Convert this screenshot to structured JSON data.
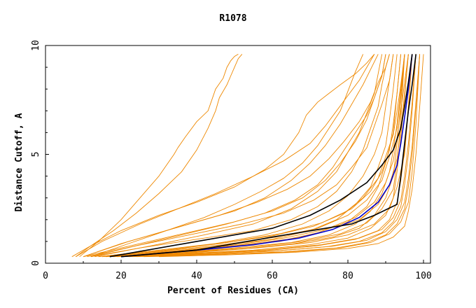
{
  "chart_data": {
    "type": "line",
    "title": "R1078",
    "xlabel": "Percent of Residues (CA)",
    "ylabel": "Distance Cutoff, A",
    "xlim": [
      0,
      100
    ],
    "ylim": [
      0,
      10
    ],
    "xticks": [
      "0",
      "20",
      "40",
      "60",
      "80",
      "100"
    ],
    "yticks": [
      "0",
      "5",
      "10"
    ],
    "grid": false,
    "legend": "none",
    "colors": {
      "models": "#ee8800",
      "highlight_blue": "#0000cc",
      "highlight_black": "#000000",
      "axis": "#000000"
    },
    "series": [
      {
        "color": "orange",
        "x": [
          9,
          14,
          20,
          25,
          30,
          32,
          34,
          35,
          37,
          40,
          43,
          44,
          45,
          47,
          48,
          49,
          50,
          51
        ],
        "y": [
          0.3,
          1.0,
          2.0,
          3.0,
          4.0,
          4.5,
          5.0,
          5.3,
          5.8,
          6.5,
          7.0,
          7.5,
          8.0,
          8.5,
          9.0,
          9.3,
          9.5,
          9.6
        ]
      },
      {
        "color": "orange",
        "x": [
          8,
          12,
          18,
          24,
          30,
          36,
          40,
          43,
          45,
          46,
          48,
          49,
          50,
          51,
          52
        ],
        "y": [
          0.3,
          0.8,
          1.5,
          2.3,
          3.2,
          4.2,
          5.2,
          6.2,
          7.0,
          7.6,
          8.2,
          8.6,
          9.0,
          9.4,
          9.6
        ]
      },
      {
        "color": "orange",
        "x": [
          7,
          12,
          20,
          30,
          40,
          50,
          58,
          63,
          65,
          67,
          68,
          69,
          70,
          72,
          75,
          78,
          82,
          85,
          86,
          87
        ],
        "y": [
          0.3,
          0.8,
          1.5,
          2.2,
          2.8,
          3.5,
          4.3,
          5.0,
          5.5,
          6.0,
          6.4,
          6.8,
          7.0,
          7.4,
          7.8,
          8.2,
          8.7,
          9.2,
          9.4,
          9.6
        ]
      },
      {
        "color": "orange",
        "x": [
          8,
          15,
          25,
          35,
          45,
          55,
          63,
          70,
          74,
          77,
          80,
          83,
          85,
          86,
          87
        ],
        "y": [
          0.3,
          1.0,
          1.8,
          2.5,
          3.2,
          4.0,
          4.7,
          5.5,
          6.3,
          7.0,
          7.7,
          8.4,
          9.0,
          9.3,
          9.6
        ]
      },
      {
        "color": "orange",
        "x": [
          10,
          20,
          30,
          40,
          50,
          58,
          65,
          70,
          74,
          78,
          81,
          84,
          86,
          88
        ],
        "y": [
          0.3,
          0.9,
          1.4,
          1.9,
          2.4,
          3.0,
          3.8,
          4.6,
          5.4,
          6.4,
          7.3,
          8.2,
          8.9,
          9.6
        ]
      },
      {
        "color": "orange",
        "x": [
          10,
          20,
          30,
          40,
          50,
          60,
          68,
          74,
          78,
          82,
          85,
          87,
          89,
          90
        ],
        "y": [
          0.3,
          0.7,
          1.1,
          1.5,
          1.9,
          2.4,
          3.0,
          3.8,
          4.6,
          5.6,
          6.6,
          7.6,
          8.6,
          9.6
        ]
      },
      {
        "color": "orange",
        "x": [
          12,
          25,
          40,
          55,
          65,
          72,
          77,
          81,
          84,
          86,
          88,
          89,
          90,
          91
        ],
        "y": [
          0.3,
          0.7,
          1.1,
          1.5,
          2.0,
          2.6,
          3.3,
          4.2,
          5.2,
          6.2,
          7.2,
          8.2,
          9.0,
          9.6
        ]
      },
      {
        "color": "orange",
        "x": [
          14,
          30,
          45,
          58,
          68,
          75,
          80,
          84,
          87,
          89,
          90,
          91,
          92
        ],
        "y": [
          0.3,
          0.6,
          0.9,
          1.3,
          1.8,
          2.4,
          3.1,
          4.0,
          5.0,
          6.0,
          7.2,
          8.4,
          9.6
        ]
      },
      {
        "color": "orange",
        "x": [
          15,
          30,
          45,
          60,
          70,
          77,
          82,
          86,
          88,
          90,
          91,
          92,
          93
        ],
        "y": [
          0.3,
          0.55,
          0.8,
          1.1,
          1.5,
          2.0,
          2.7,
          3.5,
          4.4,
          5.4,
          6.6,
          8.0,
          9.6
        ]
      },
      {
        "color": "orange",
        "x": [
          16,
          32,
          48,
          62,
          72,
          80,
          85,
          88,
          90,
          92,
          93,
          94
        ],
        "y": [
          0.3,
          0.5,
          0.75,
          1.0,
          1.4,
          1.9,
          2.6,
          3.5,
          4.6,
          6.0,
          7.8,
          9.6
        ]
      },
      {
        "color": "orange",
        "x": [
          17,
          35,
          50,
          65,
          75,
          82,
          86,
          89,
          91,
          92,
          93,
          94,
          95
        ],
        "y": [
          0.3,
          0.5,
          0.7,
          0.95,
          1.3,
          1.8,
          2.4,
          3.2,
          4.2,
          5.2,
          6.4,
          8.0,
          9.6
        ]
      },
      {
        "color": "orange",
        "x": [
          18,
          36,
          52,
          66,
          76,
          83,
          87,
          90,
          92,
          93,
          94,
          95
        ],
        "y": [
          0.3,
          0.45,
          0.65,
          0.9,
          1.2,
          1.6,
          2.2,
          3.0,
          4.0,
          5.5,
          7.4,
          9.6
        ]
      },
      {
        "color": "orange",
        "x": [
          19,
          38,
          55,
          70,
          80,
          86,
          90,
          92,
          93,
          94,
          95,
          96
        ],
        "y": [
          0.3,
          0.45,
          0.6,
          0.85,
          1.15,
          1.6,
          2.2,
          3.0,
          4.2,
          5.8,
          7.6,
          9.6
        ]
      },
      {
        "color": "orange",
        "x": [
          20,
          40,
          58,
          72,
          82,
          88,
          91,
          93,
          94,
          95,
          96,
          97
        ],
        "y": [
          0.3,
          0.42,
          0.58,
          0.8,
          1.1,
          1.5,
          2.0,
          2.8,
          3.8,
          5.2,
          7.2,
          9.6
        ]
      },
      {
        "color": "orange",
        "x": [
          22,
          42,
          60,
          74,
          83,
          89,
          92,
          94,
          95,
          96,
          97,
          98
        ],
        "y": [
          0.3,
          0.4,
          0.55,
          0.75,
          1.0,
          1.4,
          1.9,
          2.6,
          3.6,
          5.0,
          7.0,
          9.6
        ]
      },
      {
        "color": "orange",
        "x": [
          24,
          45,
          63,
          77,
          85,
          90,
          93,
          95,
          96,
          97,
          98,
          99
        ],
        "y": [
          0.3,
          0.4,
          0.52,
          0.7,
          0.95,
          1.3,
          1.8,
          2.5,
          3.5,
          5.0,
          7.2,
          9.6
        ]
      },
      {
        "color": "orange",
        "x": [
          26,
          48,
          66,
          80,
          88,
          92,
          95,
          96,
          97,
          98,
          99,
          100
        ],
        "y": [
          0.3,
          0.38,
          0.5,
          0.68,
          0.9,
          1.2,
          1.7,
          2.4,
          3.4,
          5.0,
          7.2,
          9.6
        ]
      },
      {
        "color": "orange",
        "x": [
          12,
          24,
          36,
          48,
          58,
          66,
          72,
          76,
          79,
          82,
          85,
          87,
          89,
          90
        ],
        "y": [
          0.3,
          0.8,
          1.3,
          1.8,
          2.3,
          2.9,
          3.6,
          4.4,
          5.2,
          6.0,
          6.8,
          7.6,
          8.6,
          9.6
        ]
      },
      {
        "color": "orange",
        "x": [
          13,
          28,
          42,
          55,
          65,
          72,
          77,
          80,
          83,
          85,
          87,
          88,
          89
        ],
        "y": [
          0.3,
          0.8,
          1.3,
          1.8,
          2.5,
          3.3,
          4.2,
          5.1,
          6.0,
          6.9,
          7.8,
          8.7,
          9.6
        ]
      },
      {
        "color": "orange",
        "x": [
          10,
          22,
          34,
          46,
          56,
          64,
          70,
          75,
          79,
          83,
          86,
          88,
          90,
          91
        ],
        "y": [
          0.3,
          1.0,
          1.6,
          2.2,
          2.8,
          3.4,
          4.0,
          4.8,
          5.6,
          6.5,
          7.4,
          8.3,
          9.0,
          9.6
        ]
      },
      {
        "color": "orange",
        "x": [
          16,
          32,
          48,
          62,
          73,
          81,
          86,
          89,
          91,
          92,
          93,
          94
        ],
        "y": [
          0.3,
          0.6,
          0.95,
          1.35,
          1.85,
          2.5,
          3.3,
          4.2,
          5.2,
          6.4,
          7.8,
          9.6
        ]
      },
      {
        "color": "orange",
        "x": [
          14,
          30,
          46,
          60,
          71,
          79,
          84,
          88,
          90,
          92,
          93,
          94,
          95
        ],
        "y": [
          0.3,
          0.6,
          0.9,
          1.25,
          1.7,
          2.3,
          3.0,
          3.9,
          4.9,
          5.9,
          7.0,
          8.2,
          9.6
        ]
      },
      {
        "color": "orange",
        "x": [
          20,
          38,
          56,
          70,
          80,
          87,
          91,
          93,
          95,
          96,
          97
        ],
        "y": [
          0.3,
          0.5,
          0.7,
          0.95,
          1.3,
          1.8,
          2.5,
          3.5,
          5.0,
          7.0,
          9.6
        ]
      },
      {
        "color": "orange",
        "x": [
          18,
          34,
          50,
          64,
          75,
          83,
          88,
          91,
          93,
          94,
          95,
          96
        ],
        "y": [
          0.3,
          0.55,
          0.8,
          1.1,
          1.5,
          2.0,
          2.7,
          3.6,
          4.8,
          6.2,
          7.8,
          9.6
        ]
      },
      {
        "color": "orange",
        "x": [
          11,
          24,
          38,
          52,
          63,
          71,
          77,
          81,
          85,
          87,
          89,
          91,
          92
        ],
        "y": [
          0.3,
          0.8,
          1.3,
          1.8,
          2.3,
          2.9,
          3.6,
          4.4,
          5.3,
          6.3,
          7.3,
          8.4,
          9.6
        ]
      },
      {
        "color": "orange",
        "x": [
          15,
          31,
          47,
          61,
          72,
          80,
          85,
          89,
          91,
          93,
          94,
          95
        ],
        "y": [
          0.3,
          0.55,
          0.85,
          1.2,
          1.6,
          2.2,
          2.9,
          3.8,
          4.9,
          6.2,
          7.8,
          9.6
        ]
      },
      {
        "color": "orange",
        "x": [
          21,
          41,
          59,
          73,
          83,
          89,
          92,
          94,
          95,
          96,
          97,
          98
        ],
        "y": [
          0.3,
          0.45,
          0.62,
          0.85,
          1.15,
          1.55,
          2.1,
          2.9,
          4.0,
          5.5,
          7.4,
          9.6
        ]
      },
      {
        "color": "orange",
        "x": [
          23,
          44,
          62,
          76,
          85,
          90,
          93,
          95,
          96,
          97,
          98,
          99
        ],
        "y": [
          0.3,
          0.42,
          0.58,
          0.78,
          1.05,
          1.45,
          2.0,
          2.8,
          3.9,
          5.4,
          7.4,
          9.6
        ]
      },
      {
        "color": "orange",
        "x": [
          30,
          50,
          65,
          78,
          86,
          91,
          94,
          96,
          97,
          98,
          99
        ],
        "y": [
          0.3,
          0.4,
          0.52,
          0.7,
          0.95,
          1.35,
          1.9,
          2.8,
          4.2,
          6.4,
          9.6
        ]
      },
      {
        "color": "orange",
        "x": [
          12,
          22,
          32,
          42,
          50,
          57,
          63,
          68,
          72,
          75,
          78,
          80,
          82,
          84
        ],
        "y": [
          0.3,
          0.9,
          1.5,
          2.1,
          2.7,
          3.3,
          3.9,
          4.6,
          5.4,
          6.2,
          7.0,
          7.9,
          8.8,
          9.6
        ]
      },
      {
        "color": "orange",
        "x": [
          19,
          37,
          54,
          68,
          78,
          85,
          89,
          92,
          93,
          94,
          95
        ],
        "y": [
          0.3,
          0.5,
          0.72,
          1.0,
          1.35,
          1.85,
          2.5,
          3.4,
          4.6,
          6.6,
          9.6
        ]
      },
      {
        "color": "orange",
        "x": [
          17,
          33,
          49,
          63,
          74,
          82,
          87,
          90,
          92,
          93,
          94,
          95,
          96
        ],
        "y": [
          0.3,
          0.55,
          0.82,
          1.15,
          1.55,
          2.1,
          2.8,
          3.7,
          4.7,
          5.8,
          7.0,
          8.3,
          9.6
        ]
      },
      {
        "color": "blue",
        "x": [
          20,
          40,
          55,
          67,
          76,
          83,
          88,
          91,
          93,
          94,
          95,
          96,
          97
        ],
        "y": [
          0.3,
          0.6,
          0.85,
          1.15,
          1.55,
          2.1,
          2.8,
          3.6,
          4.5,
          5.5,
          6.7,
          8.0,
          9.6
        ]
      },
      {
        "color": "black",
        "x": [
          17,
          40,
          60,
          70,
          78,
          85,
          89,
          92,
          94,
          95,
          96,
          97
        ],
        "y": [
          0.3,
          1.0,
          1.6,
          2.2,
          2.9,
          3.7,
          4.5,
          5.2,
          6.2,
          7.2,
          8.3,
          9.6
        ]
      },
      {
        "color": "black",
        "x": [
          20,
          40,
          60,
          74,
          81,
          87,
          93,
          94,
          95,
          96,
          97,
          98
        ],
        "y": [
          0.3,
          0.6,
          1.2,
          1.6,
          1.8,
          2.2,
          2.7,
          4.0,
          5.5,
          7.0,
          8.2,
          9.6
        ]
      }
    ]
  }
}
